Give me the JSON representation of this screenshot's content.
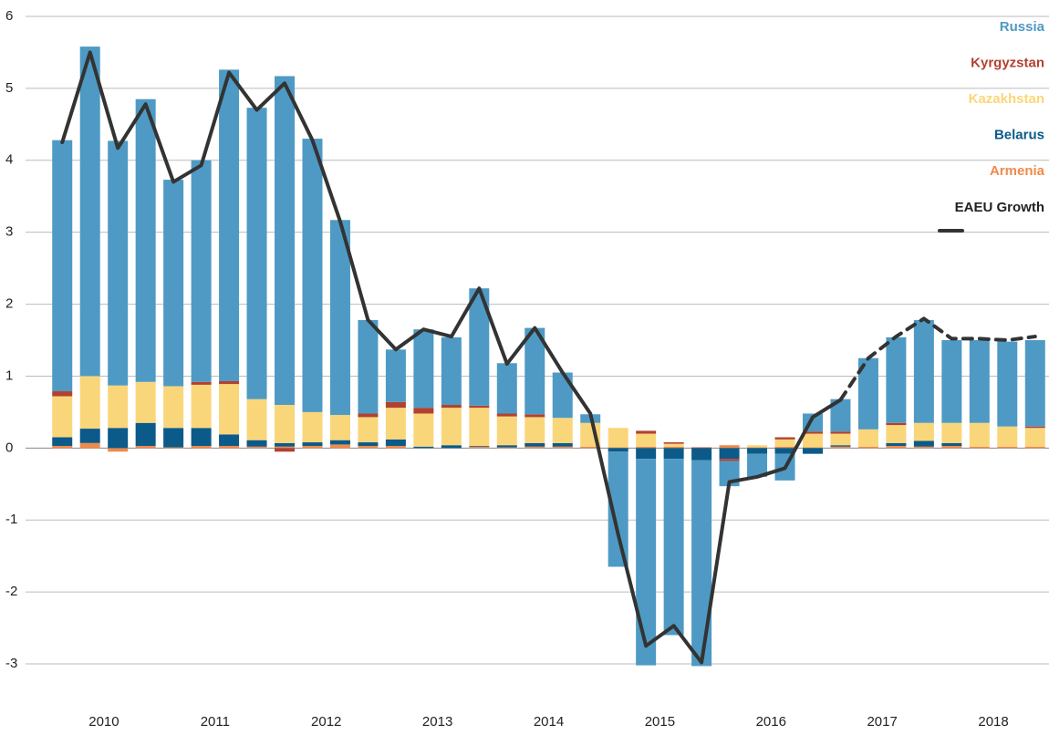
{
  "chart_data": {
    "type": "bar",
    "stacked": true,
    "categories": [
      "2010",
      null,
      null,
      null,
      "2011",
      null,
      null,
      null,
      "2012",
      null,
      null,
      null,
      "2013",
      null,
      null,
      null,
      "2014",
      null,
      null,
      null,
      "2015",
      null,
      null,
      null,
      "2016",
      null,
      null,
      null,
      "2017",
      null,
      null,
      null,
      "2018",
      null,
      null,
      null
    ],
    "series": [
      {
        "name": "Armenia",
        "color": "#f08a4b",
        "values": [
          0.03,
          0.07,
          -0.05,
          0.03,
          0.01,
          0.03,
          0.03,
          0.02,
          0.02,
          0.03,
          0.05,
          0.03,
          0.03,
          0,
          0,
          0.02,
          0.01,
          0.02,
          0.02,
          0.02,
          0.01,
          0.02,
          0.02,
          0,
          0.04,
          0.01,
          0.02,
          0.01,
          0.02,
          0.02,
          0.03,
          0.02,
          0.03,
          0.02,
          0.02,
          0.02
        ]
      },
      {
        "name": "Belarus",
        "color": "#0b5a8a",
        "values": [
          0.12,
          0.2,
          0.28,
          0.32,
          0.27,
          0.25,
          0.16,
          0.09,
          0.05,
          0.05,
          0.06,
          0.05,
          0.09,
          0.02,
          0.04,
          0.01,
          0.03,
          0.05,
          0.05,
          0,
          -0.05,
          -0.15,
          -0.15,
          -0.17,
          -0.15,
          -0.08,
          -0.08,
          -0.08,
          0.02,
          0,
          0.04,
          0.08,
          0.04,
          0,
          0,
          0
        ]
      },
      {
        "name": "Kazakhstan",
        "color": "#fad67a",
        "values": [
          0.57,
          0.73,
          0.59,
          0.57,
          0.58,
          0.6,
          0.7,
          0.57,
          0.53,
          0.42,
          0.35,
          0.35,
          0.44,
          0.46,
          0.52,
          0.53,
          0.4,
          0.36,
          0.35,
          0.33,
          0.27,
          0.18,
          0.04,
          0,
          0,
          0.03,
          0.1,
          0.19,
          0.16,
          0.24,
          0.25,
          0.25,
          0.28,
          0.33,
          0.28,
          0.26
        ]
      },
      {
        "name": "Kyrgyzstan",
        "color": "#b34130",
        "values": [
          0.07,
          0,
          0,
          0,
          0,
          0.04,
          0.04,
          0,
          -0.05,
          0,
          0,
          0.05,
          0.08,
          0.08,
          0.04,
          0.03,
          0.04,
          0.04,
          0,
          0,
          0,
          0.04,
          0.02,
          0.01,
          -0.03,
          0,
          0.03,
          0.03,
          0.03,
          0,
          0.03,
          0,
          0,
          0,
          0,
          0.02
        ]
      },
      {
        "name": "Russia",
        "color": "#4e9ac4",
        "values": [
          3.49,
          4.58,
          3.4,
          3.93,
          2.87,
          3.08,
          4.33,
          4.05,
          4.57,
          3.8,
          2.71,
          1.3,
          0.73,
          1.09,
          0.94,
          1.63,
          0.7,
          1.2,
          0.63,
          0.12,
          -1.6,
          -2.87,
          -2.45,
          -2.86,
          -0.35,
          -0.32,
          -0.37,
          0.25,
          0.45,
          0.99,
          1.19,
          1.43,
          1.15,
          1.15,
          1.18,
          1.2
        ]
      }
    ],
    "line": {
      "name": "EAEU Growth",
      "color": "#333333",
      "dash_from": 28,
      "values": [
        4.25,
        5.5,
        4.17,
        4.78,
        3.7,
        3.93,
        5.22,
        4.7,
        5.07,
        4.28,
        3.15,
        1.78,
        1.37,
        1.65,
        1.55,
        2.22,
        1.17,
        1.67,
        1.05,
        0.48,
        -1.2,
        -2.75,
        -2.47,
        -2.98,
        -0.47,
        -0.4,
        -0.28,
        0.43,
        0.67,
        1.25,
        1.55,
        1.8,
        1.52,
        1.52,
        1.5,
        1.55
      ]
    },
    "ylim": [
      -3.3,
      6.1
    ],
    "yticks": [
      -3,
      -2,
      -1,
      0,
      1,
      2,
      3,
      4,
      5,
      6
    ],
    "grid": true
  }
}
